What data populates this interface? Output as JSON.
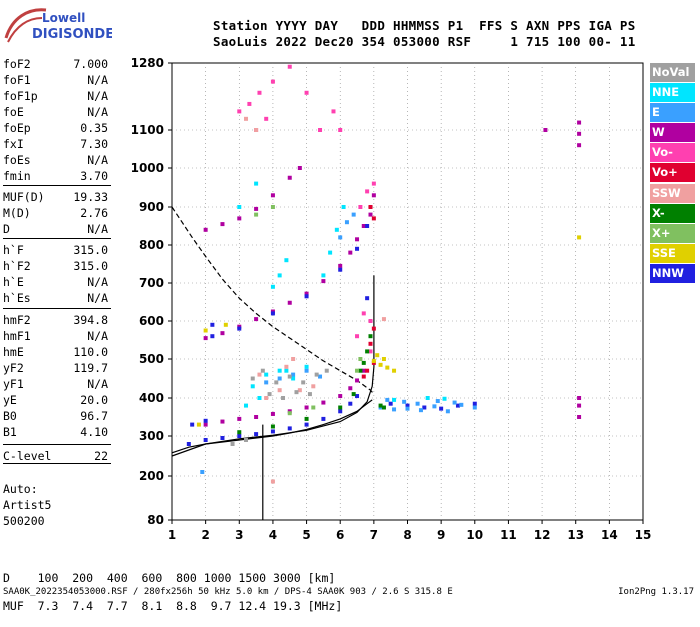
{
  "logo": {
    "line1": "Lowell",
    "line2": "DIGISONDE"
  },
  "header": {
    "line1": "Station YYYY DAY   DDD HHMMSS P1  FFS S AXN PPS IGA PS",
    "line2": "SaoLuis 2022 Dec20 354 053000 RSF     1 715 100 00- 11"
  },
  "params": [
    {
      "label": "foF2",
      "value": "7.000"
    },
    {
      "label": "foF1",
      "value": "N/A"
    },
    {
      "label": "foF1p",
      "value": "N/A"
    },
    {
      "label": "foE",
      "value": "N/A"
    },
    {
      "label": "foEp",
      "value": "0.35"
    },
    {
      "label": "fxI",
      "value": "7.30"
    },
    {
      "label": "foEs",
      "value": "N/A"
    },
    {
      "label": "fmin",
      "value": "3.70"
    },
    {
      "label": "MUF(D)",
      "value": "19.33"
    },
    {
      "label": "M(D)",
      "value": "2.76"
    },
    {
      "label": "D",
      "value": "N/A"
    },
    {
      "label": "h`F",
      "value": "315.0"
    },
    {
      "label": "h`F2",
      "value": "315.0"
    },
    {
      "label": "h`E",
      "value": "N/A"
    },
    {
      "label": "h`Es",
      "value": "N/A"
    },
    {
      "label": "hmF2",
      "value": "394.8"
    },
    {
      "label": "hmF1",
      "value": "N/A"
    },
    {
      "label": "hmE",
      "value": "110.0"
    },
    {
      "label": "yF2",
      "value": "119.7"
    },
    {
      "label": "yF1",
      "value": "N/A"
    },
    {
      "label": "yE",
      "value": "20.0"
    },
    {
      "label": "B0",
      "value": "96.7"
    },
    {
      "label": "B1",
      "value": "4.10"
    },
    {
      "label": "C-level",
      "value": "22"
    }
  ],
  "autoscale": {
    "line1": "Auto:",
    "line2": "Artist5",
    "line3": "500200"
  },
  "legend": [
    {
      "label": "NoVal",
      "color": "#a0a0a0"
    },
    {
      "label": "NNE",
      "color": "#00e5ff"
    },
    {
      "label": "E",
      "color": "#3aa0ff"
    },
    {
      "label": "W",
      "color": "#b000a0"
    },
    {
      "label": "Vo-",
      "color": "#ff40b0"
    },
    {
      "label": "Vo+",
      "color": "#e00030"
    },
    {
      "label": "SSW",
      "color": "#f0a0a0"
    },
    {
      "label": "X-",
      "color": "#008000"
    },
    {
      "label": "X+",
      "color": "#80c060"
    },
    {
      "label": "SSE",
      "color": "#e0d000"
    },
    {
      "label": "NNW",
      "color": "#2020e0"
    }
  ],
  "muf_table": {
    "d_line": "D    100  200  400  600  800 1000 1500 3000 [km]",
    "muf_line": "MUF  7.3  7.4  7.7  8.1  8.8  9.7 12.4 19.3 [MHz]"
  },
  "footer": {
    "left": "SAA0K_2022354053000.RSF / 280fx256h 50 kHz 5.0 km / DPS-4 SAA0K 903 / 2.6 S 315.8 E",
    "right": "Ion2Png 1.3.17"
  },
  "chart_data": {
    "type": "scatter",
    "xlim": [
      1,
      15
    ],
    "ylim": [
      80,
      1280
    ],
    "x_ticks": [
      1,
      2,
      3,
      4,
      5,
      6,
      7,
      8,
      9,
      10,
      11,
      12,
      13,
      14,
      15
    ],
    "y_ticks": [
      80,
      200,
      300,
      400,
      500,
      600,
      700,
      800,
      900,
      1000,
      1100,
      1280
    ],
    "grid": "dotted",
    "legend_position": "right",
    "series": [
      {
        "name": "W",
        "color": "#b000a0",
        "points": [
          [
            2.0,
            555
          ],
          [
            2.5,
            568
          ],
          [
            3.0,
            585
          ],
          [
            3.5,
            605
          ],
          [
            4.0,
            625
          ],
          [
            4.5,
            648
          ],
          [
            5.0,
            672
          ],
          [
            5.5,
            705
          ],
          [
            6.0,
            745
          ],
          [
            6.3,
            780
          ],
          [
            6.5,
            815
          ],
          [
            6.7,
            850
          ],
          [
            6.9,
            880
          ],
          [
            7.0,
            930
          ],
          [
            2.0,
            330
          ],
          [
            2.5,
            338
          ],
          [
            3.0,
            345
          ],
          [
            3.5,
            350
          ],
          [
            4.0,
            358
          ],
          [
            4.5,
            365
          ],
          [
            5.0,
            375
          ],
          [
            5.5,
            388
          ],
          [
            6.0,
            405
          ],
          [
            6.3,
            425
          ],
          [
            6.5,
            445
          ],
          [
            6.7,
            470
          ],
          [
            2.0,
            840
          ],
          [
            2.5,
            855
          ],
          [
            3.0,
            870
          ],
          [
            3.5,
            895
          ],
          [
            4.0,
            930
          ],
          [
            4.5,
            975
          ],
          [
            4.8,
            1000
          ],
          [
            13.1,
            1090
          ],
          [
            13.1,
            1060
          ],
          [
            13.1,
            1120
          ],
          [
            13.1,
            380
          ],
          [
            13.1,
            350
          ],
          [
            13.1,
            400
          ],
          [
            12.1,
            1100
          ]
        ]
      },
      {
        "name": "NNW",
        "color": "#2020e0",
        "points": [
          [
            1.5,
            280
          ],
          [
            2.0,
            290
          ],
          [
            2.5,
            295
          ],
          [
            3.0,
            300
          ],
          [
            3.5,
            305
          ],
          [
            4.0,
            312
          ],
          [
            4.5,
            320
          ],
          [
            5.0,
            330
          ],
          [
            5.5,
            345
          ],
          [
            6.0,
            365
          ],
          [
            6.3,
            385
          ],
          [
            6.5,
            405
          ],
          [
            2.2,
            560
          ],
          [
            3.0,
            580
          ],
          [
            4.0,
            620
          ],
          [
            5.0,
            665
          ],
          [
            6.0,
            735
          ],
          [
            6.5,
            790
          ],
          [
            6.8,
            850
          ],
          [
            2.2,
            590
          ],
          [
            1.6,
            330
          ],
          [
            2.0,
            340
          ],
          [
            6.8,
            660
          ],
          [
            7.5,
            385
          ],
          [
            8.0,
            380
          ],
          [
            8.5,
            375
          ],
          [
            9.0,
            372
          ],
          [
            9.5,
            380
          ],
          [
            10.0,
            385
          ]
        ]
      },
      {
        "name": "E",
        "color": "#3aa0ff",
        "points": [
          [
            7.2,
            375
          ],
          [
            7.6,
            370
          ],
          [
            8.0,
            372
          ],
          [
            8.4,
            368
          ],
          [
            8.8,
            378
          ],
          [
            9.2,
            365
          ],
          [
            9.6,
            382
          ],
          [
            10.0,
            375
          ],
          [
            7.4,
            395
          ],
          [
            7.9,
            390
          ],
          [
            8.3,
            385
          ],
          [
            8.9,
            392
          ],
          [
            9.4,
            388
          ],
          [
            6.2,
            860
          ],
          [
            6.4,
            880
          ],
          [
            6.0,
            820
          ],
          [
            3.8,
            440
          ],
          [
            4.2,
            450
          ],
          [
            4.6,
            460
          ],
          [
            5.0,
            470
          ],
          [
            5.4,
            455
          ],
          [
            1.9,
            210
          ]
        ]
      },
      {
        "name": "NNE",
        "color": "#00e5ff",
        "points": [
          [
            3.4,
            430
          ],
          [
            3.8,
            460
          ],
          [
            4.2,
            470
          ],
          [
            4.6,
            450
          ],
          [
            5.0,
            480
          ],
          [
            3.2,
            380
          ],
          [
            3.6,
            400
          ],
          [
            4.4,
            470
          ],
          [
            4.0,
            690
          ],
          [
            4.2,
            720
          ],
          [
            4.4,
            760
          ],
          [
            5.5,
            720
          ],
          [
            5.7,
            780
          ],
          [
            5.9,
            840
          ],
          [
            6.1,
            900
          ],
          [
            3.0,
            900
          ],
          [
            3.5,
            960
          ],
          [
            7.6,
            395
          ],
          [
            8.6,
            400
          ],
          [
            9.1,
            398
          ]
        ]
      },
      {
        "name": "Vo-",
        "color": "#ff40b0",
        "points": [
          [
            3.0,
            1150
          ],
          [
            3.3,
            1170
          ],
          [
            3.6,
            1200
          ],
          [
            4.0,
            1230
          ],
          [
            4.5,
            1270
          ],
          [
            3.5,
            1100
          ],
          [
            3.8,
            1130
          ],
          [
            5.0,
            1200
          ],
          [
            5.4,
            1100
          ],
          [
            5.8,
            1150
          ],
          [
            6.0,
            1100
          ],
          [
            6.7,
            620
          ],
          [
            6.9,
            600
          ],
          [
            6.5,
            560
          ],
          [
            6.9,
            520
          ],
          [
            6.6,
            900
          ],
          [
            6.8,
            940
          ],
          [
            7.0,
            960
          ]
        ]
      },
      {
        "name": "Vo+",
        "color": "#e00030",
        "points": [
          [
            6.8,
            470
          ],
          [
            7.0,
            490
          ],
          [
            6.9,
            540
          ],
          [
            7.0,
            580
          ],
          [
            6.7,
            455
          ],
          [
            6.9,
            900
          ],
          [
            7.0,
            870
          ]
        ]
      },
      {
        "name": "X-",
        "color": "#008000",
        "points": [
          [
            6.6,
            470
          ],
          [
            6.7,
            490
          ],
          [
            6.8,
            520
          ],
          [
            6.9,
            560
          ],
          [
            3.0,
            310
          ],
          [
            4.0,
            325
          ],
          [
            5.0,
            345
          ],
          [
            6.0,
            375
          ],
          [
            6.4,
            410
          ],
          [
            7.2,
            380
          ],
          [
            7.3,
            375
          ]
        ]
      },
      {
        "name": "X+",
        "color": "#80c060",
        "points": [
          [
            6.5,
            470
          ],
          [
            6.6,
            500
          ],
          [
            4.5,
            360
          ],
          [
            5.2,
            375
          ],
          [
            3.5,
            880
          ],
          [
            4.0,
            900
          ]
        ]
      },
      {
        "name": "SSE",
        "color": "#e0d000",
        "points": [
          [
            7.0,
            495
          ],
          [
            7.2,
            485
          ],
          [
            7.4,
            478
          ],
          [
            7.6,
            470
          ],
          [
            7.1,
            510
          ],
          [
            7.3,
            500
          ],
          [
            13.1,
            820
          ],
          [
            2.0,
            575
          ],
          [
            2.6,
            590
          ],
          [
            1.8,
            330
          ]
        ]
      },
      {
        "name": "SSW",
        "color": "#f0a0a0",
        "points": [
          [
            3.8,
            400
          ],
          [
            4.2,
            420
          ],
          [
            4.8,
            420
          ],
          [
            5.2,
            430
          ],
          [
            3.6,
            460
          ],
          [
            4.4,
            480
          ],
          [
            4.6,
            500
          ],
          [
            7.3,
            605
          ],
          [
            3.5,
            1100
          ],
          [
            3.2,
            1130
          ],
          [
            4.0,
            185
          ]
        ]
      },
      {
        "name": "NoVal",
        "color": "#a0a0a0",
        "points": [
          [
            3.4,
            450
          ],
          [
            3.7,
            470
          ],
          [
            4.1,
            440
          ],
          [
            4.5,
            455
          ],
          [
            4.9,
            440
          ],
          [
            5.3,
            460
          ],
          [
            5.6,
            470
          ],
          [
            3.9,
            410
          ],
          [
            4.3,
            400
          ],
          [
            4.7,
            415
          ],
          [
            5.1,
            410
          ],
          [
            2.8,
            280
          ],
          [
            3.2,
            290
          ]
        ]
      }
    ],
    "curves": [
      {
        "name": "profile",
        "style": "solid",
        "points": [
          [
            1.0,
            258
          ],
          [
            1.5,
            272
          ],
          [
            2.0,
            280
          ],
          [
            2.5,
            285
          ],
          [
            3.0,
            290
          ],
          [
            3.5,
            295
          ],
          [
            4.0,
            300
          ],
          [
            4.5,
            308
          ],
          [
            5.0,
            317
          ],
          [
            5.5,
            330
          ],
          [
            6.0,
            345
          ],
          [
            6.5,
            365
          ],
          [
            6.8,
            385
          ],
          [
            6.95,
            395
          ]
        ]
      },
      {
        "name": "F2 trace",
        "style": "solid",
        "points": [
          [
            1.0,
            250
          ],
          [
            2.0,
            280
          ],
          [
            3.0,
            293
          ],
          [
            4.0,
            302
          ],
          [
            5.0,
            315
          ],
          [
            6.0,
            338
          ],
          [
            6.5,
            362
          ],
          [
            6.8,
            390
          ],
          [
            6.95,
            430
          ],
          [
            7.0,
            480
          ],
          [
            7.0,
            600
          ],
          [
            7.0,
            720
          ]
        ]
      },
      {
        "name": "x-trace",
        "style": "dashed",
        "points": [
          [
            1.0,
            900
          ],
          [
            1.3,
            860
          ],
          [
            1.6,
            820
          ],
          [
            2.0,
            770
          ],
          [
            2.5,
            710
          ],
          [
            3.0,
            660
          ],
          [
            3.5,
            620
          ],
          [
            4.0,
            585
          ],
          [
            4.5,
            555
          ],
          [
            5.0,
            525
          ],
          [
            5.5,
            495
          ],
          [
            6.0,
            470
          ],
          [
            6.5,
            445
          ],
          [
            6.9,
            420
          ],
          [
            7.0,
            410
          ]
        ]
      },
      {
        "name": "fmin marker",
        "style": "solid",
        "points": [
          [
            3.7,
            80
          ],
          [
            3.7,
            330
          ]
        ]
      }
    ]
  }
}
